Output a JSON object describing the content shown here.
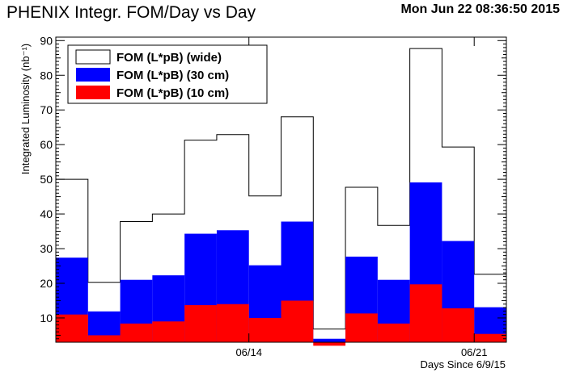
{
  "header": {
    "title": "PHENIX Integr. FOM/Day vs Day",
    "timestamp": "Mon Jun 22 08:36:50 2015"
  },
  "chart_data": {
    "type": "bar",
    "title": "PHENIX Integr. FOM/Day vs Day",
    "xlabel": "Days Since 6/9/15",
    "ylabel": "Integrated Luminosity (nb⁻¹)",
    "xlim": [
      0,
      14
    ],
    "ylim": [
      3,
      91
    ],
    "x_ticks": [
      {
        "x": 6,
        "label": "06/14"
      },
      {
        "x": 13,
        "label": "06/21"
      }
    ],
    "y_ticks": [
      10,
      20,
      30,
      40,
      50,
      60,
      70,
      80,
      90
    ],
    "grid": false,
    "legend_position": "top-left",
    "series": [
      {
        "name": "FOM (L*pB) (wide)",
        "color": "#ffffff",
        "outline": "#000000",
        "values": [
          50,
          20.3,
          37.8,
          40,
          61.3,
          62.9,
          45.2,
          68,
          6.8,
          47.7,
          36.7,
          87.7,
          59.3,
          22.6
        ]
      },
      {
        "name": "FOM (L*pB) (30 cm)",
        "color": "#0000ff",
        "values": [
          27.4,
          11.9,
          21,
          22.3,
          34.3,
          35.3,
          25.2,
          37.8,
          4,
          27.7,
          21,
          49.1,
          32.2,
          13.1
        ]
      },
      {
        "name": "FOM (L*pB) (10 cm)",
        "color": "#ff0000",
        "values": [
          11,
          5,
          8.4,
          9,
          13.7,
          14,
          10,
          15,
          2,
          11.3,
          8.4,
          19.7,
          12.8,
          5.4
        ]
      }
    ]
  }
}
